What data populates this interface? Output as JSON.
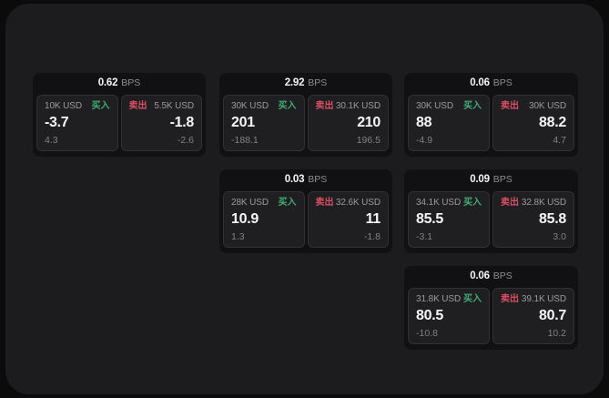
{
  "labels": {
    "bps_suffix": "BPS",
    "buy": "买入",
    "sell": "卖出"
  },
  "colors": {
    "page_bg": "#0b0b0c",
    "container_bg": "#1c1c1e",
    "card_bg": "#111113",
    "panel_bg": "#1f1f21",
    "panel_border": "#313134",
    "buy_green": "#42ab78",
    "sell_red": "#d94f63",
    "value_white": "#f7f7f8",
    "muted_gray": "#8e8e93"
  },
  "cards": [
    {
      "bps": "0.62",
      "buy": {
        "amount": "10K USD",
        "value": "-3.7",
        "delta": "4.3"
      },
      "sell": {
        "amount": "5.5K USD",
        "value": "-1.8",
        "delta": "-2.6"
      }
    },
    {
      "bps": "2.92",
      "buy": {
        "amount": "30K USD",
        "value": "201",
        "delta": "-188.1"
      },
      "sell": {
        "amount": "30.1K USD",
        "value": "210",
        "delta": "196.5"
      }
    },
    {
      "bps": "0.06",
      "buy": {
        "amount": "30K USD",
        "value": "88",
        "delta": "-4.9"
      },
      "sell": {
        "amount": "30K USD",
        "value": "88.2",
        "delta": "4.7"
      }
    },
    {
      "bps": "0.03",
      "buy": {
        "amount": "28K USD",
        "value": "10.9",
        "delta": "1.3"
      },
      "sell": {
        "amount": "32.6K USD",
        "value": "11",
        "delta": "-1.8"
      }
    },
    {
      "bps": "0.09",
      "buy": {
        "amount": "34.1K USD",
        "value": "85.5",
        "delta": "-3.1"
      },
      "sell": {
        "amount": "32.8K USD",
        "value": "85.8",
        "delta": "3.0"
      }
    },
    {
      "bps": "0.06",
      "buy": {
        "amount": "31.8K USD",
        "value": "80.5",
        "delta": "-10.8"
      },
      "sell": {
        "amount": "39.1K USD",
        "value": "80.7",
        "delta": "10.2"
      }
    }
  ]
}
